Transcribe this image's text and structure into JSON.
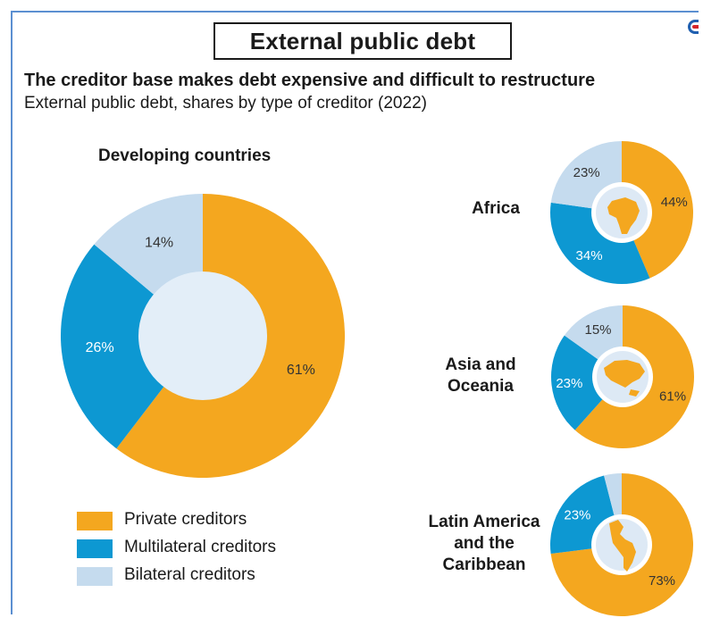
{
  "title": "External public debt",
  "headline": "The creditor base makes debt expensive and difficult to restructure",
  "subtitle": "External public debt, shares by type of creditor (2022)",
  "colors": {
    "private": "#f4a71f",
    "multilateral": "#0d98d2",
    "bilateral": "#c5dbee",
    "center": "#e3eef8"
  },
  "legend": [
    {
      "label": "Private creditors",
      "color": "#f4a71f"
    },
    {
      "label": "Multilateral creditors",
      "color": "#0d98d2"
    },
    {
      "label": "Bilateral creditors",
      "color": "#c5dbee"
    }
  ],
  "regions": {
    "africa": "Africa",
    "asia_line1": "Asia and",
    "asia_line2": "Oceania",
    "latam_line1": "Latin America",
    "latam_line2": "and the",
    "latam_line3": "Caribbean"
  },
  "chart_data": [
    {
      "type": "pie",
      "title": "Developing countries",
      "categories": [
        "Private creditors",
        "Multilateral creditors",
        "Bilateral creditors"
      ],
      "values": [
        61,
        26,
        14
      ],
      "labels": [
        "61%",
        "26%",
        "14%"
      ]
    },
    {
      "type": "pie",
      "title": "Africa",
      "categories": [
        "Private creditors",
        "Multilateral creditors",
        "Bilateral creditors"
      ],
      "values": [
        44,
        34,
        23
      ],
      "labels": [
        "44%",
        "34%",
        "23%"
      ]
    },
    {
      "type": "pie",
      "title": "Asia and Oceania",
      "categories": [
        "Private creditors",
        "Multilateral creditors",
        "Bilateral creditors"
      ],
      "values": [
        61,
        23,
        15
      ],
      "labels": [
        "61%",
        "23%",
        "15%"
      ]
    },
    {
      "type": "pie",
      "title": "Latin America and the Caribbean",
      "categories": [
        "Private creditors",
        "Multilateral creditors",
        "Bilateral creditors"
      ],
      "values": [
        73,
        23,
        4
      ],
      "labels": [
        "73%",
        "23%",
        ""
      ]
    }
  ]
}
